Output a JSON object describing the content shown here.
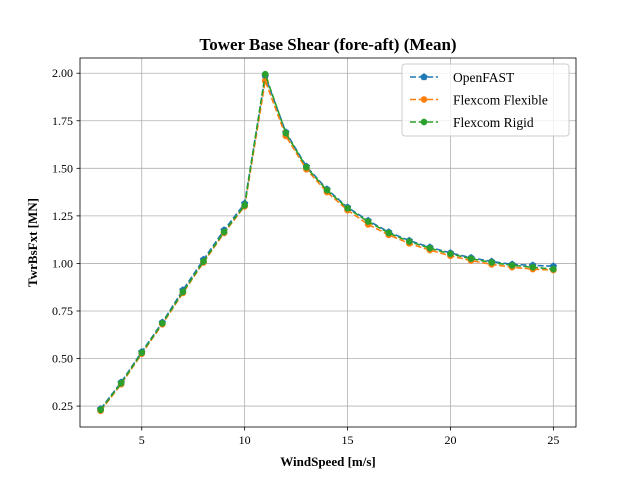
{
  "chart_data": {
    "type": "line",
    "title": "Tower Base Shear (fore-aft) (Mean)",
    "xlabel": "WindSpeed [m/s]",
    "ylabel": "TwrBsFxt [MN]",
    "xlim": [
      2,
      26.1
    ],
    "ylim": [
      0.14,
      2.08
    ],
    "xticks": [
      5,
      10,
      15,
      20,
      25
    ],
    "yticks": [
      0.25,
      0.5,
      0.75,
      1.0,
      1.25,
      1.5,
      1.75,
      2.0
    ],
    "xtick_labels": [
      "5",
      "10",
      "15",
      "20",
      "25"
    ],
    "ytick_labels": [
      "0.25",
      "0.50",
      "0.75",
      "1.00",
      "1.25",
      "1.50",
      "1.75",
      "2.00"
    ],
    "grid": true,
    "legend_position": "top-right",
    "x": [
      3,
      4,
      5,
      6,
      7,
      8,
      9,
      10,
      11,
      12,
      13,
      14,
      15,
      16,
      17,
      18,
      19,
      20,
      21,
      22,
      23,
      24,
      25
    ],
    "series": [
      {
        "name": "OpenFAST",
        "color": "#1f77b4",
        "marker": "pentagon",
        "values": [
          0.235,
          0.375,
          0.535,
          0.69,
          0.86,
          1.02,
          1.175,
          1.315,
          1.985,
          1.69,
          1.51,
          1.39,
          1.295,
          1.225,
          1.165,
          1.12,
          1.085,
          1.055,
          1.03,
          1.01,
          0.995,
          0.99,
          0.985
        ]
      },
      {
        "name": "Flexcom Flexible",
        "color": "#ff7f0e",
        "marker": "circle",
        "values": [
          0.225,
          0.365,
          0.525,
          0.68,
          0.845,
          1.005,
          1.16,
          1.3,
          1.96,
          1.67,
          1.495,
          1.375,
          1.28,
          1.205,
          1.15,
          1.105,
          1.07,
          1.04,
          1.015,
          0.995,
          0.98,
          0.97,
          0.965
        ]
      },
      {
        "name": "Flexcom Rigid",
        "color": "#2ca02c",
        "marker": "circle",
        "values": [
          0.23,
          0.37,
          0.53,
          0.685,
          0.85,
          1.01,
          1.165,
          1.305,
          1.995,
          1.685,
          1.505,
          1.385,
          1.29,
          1.22,
          1.16,
          1.115,
          1.08,
          1.05,
          1.025,
          1.005,
          0.99,
          0.98,
          0.97
        ]
      }
    ]
  }
}
